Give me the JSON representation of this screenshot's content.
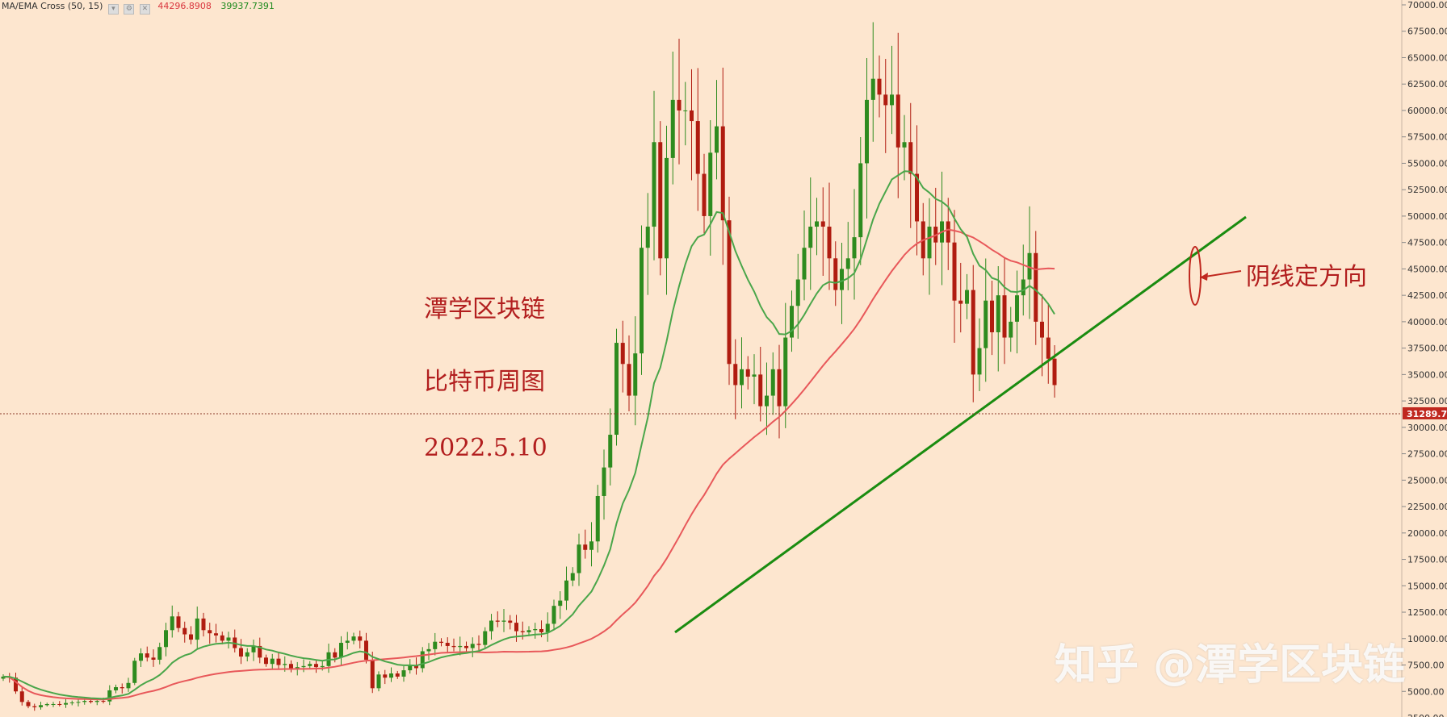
{
  "indicator": {
    "label": "MA/EMA Cross (50, 15)",
    "value_ma": "44296.8908",
    "value_ema": "39937.7391"
  },
  "annotations": {
    "title": "潭学区块链",
    "subtitle": "比特币周图",
    "date": "2022.5.10",
    "callout": "阴线定方向"
  },
  "watermark": "知乎 @潭学区块链",
  "colors": {
    "background": "#fde6cf",
    "up_candle": "#2e8b1f",
    "down_candle": "#b01c10",
    "ma_line": "#e8585a",
    "ema_line": "#4aa64a",
    "trendline": "#1a8c10",
    "price_tag": "#c0281f",
    "annotation_text": "#b21e1e"
  },
  "chart_data": {
    "type": "candlestick",
    "ylim": [
      2500,
      70000
    ],
    "y_ticks": [
      "70000.00",
      "67500.00",
      "65000.00",
      "62500.00",
      "60000.00",
      "57500.00",
      "55000.00",
      "52500.00",
      "50000.00",
      "47500.00",
      "45000.00",
      "42500.00",
      "40000.00",
      "37500.00",
      "35000.00",
      "32500.00",
      "30000.00",
      "27500.00",
      "25000.00",
      "22500.00",
      "20000.00",
      "17500.00",
      "15000.00",
      "12500.00",
      "10000.00",
      "7500.00",
      "5000.00",
      "2500.00"
    ],
    "current_price": "31289.70",
    "series": [
      {
        "name": "MA/EMA Cross (50, 15)",
        "kind": "ma50"
      },
      {
        "name": "MA/EMA Cross (50, 15)",
        "kind": "ema15"
      }
    ],
    "closes": [
      6400,
      6300,
      5000,
      4000,
      3600,
      3500,
      3700,
      3800,
      3800,
      3750,
      3900,
      3950,
      4000,
      4100,
      4000,
      4100,
      4050,
      5100,
      5400,
      5300,
      5800,
      7900,
      8600,
      8200,
      8000,
      9200,
      10800,
      12100,
      11000,
      10400,
      9900,
      11900,
      10800,
      10500,
      10300,
      9800,
      10100,
      9100,
      8300,
      8700,
      9300,
      8200,
      7600,
      8100,
      7500,
      7600,
      7200,
      7300,
      7400,
      7600,
      7300,
      7400,
      8700,
      8200,
      9600,
      9800,
      10200,
      9800,
      8000,
      5300,
      6600,
      6300,
      6700,
      6400,
      7000,
      7500,
      7200,
      8800,
      9000,
      9700,
      9600,
      9300,
      9200,
      9300,
      9100,
      9500,
      9400,
      10700,
      11700,
      11600,
      11700,
      11500,
      10700,
      10600,
      10800,
      10900,
      10600,
      11400,
      13100,
      13600,
      15500,
      16200,
      18900,
      18400,
      19200,
      23500,
      26200,
      29300,
      38000,
      36000,
      33000,
      37000,
      47000,
      49000,
      57000,
      46000,
      55500,
      61000,
      60000,
      60000,
      59000,
      54000,
      50000,
      56000,
      58500,
      49600,
      36000,
      34000,
      35500,
      34800,
      35000,
      32000,
      33000,
      35500,
      32000,
      38500,
      41500,
      44000,
      47000,
      49000,
      49500,
      49000,
      46000,
      43000,
      45000,
      46000,
      48000,
      55000,
      61000,
      63000,
      61500,
      60500,
      61500,
      56500,
      57000,
      54000,
      49500,
      46000,
      49000,
      47500,
      49500,
      47500,
      42000,
      41700,
      43000,
      35000,
      37500,
      42000,
      39000,
      42500,
      38500,
      40000,
      42500,
      44000,
      46500,
      40000,
      38500,
      36500,
      34000
    ]
  }
}
